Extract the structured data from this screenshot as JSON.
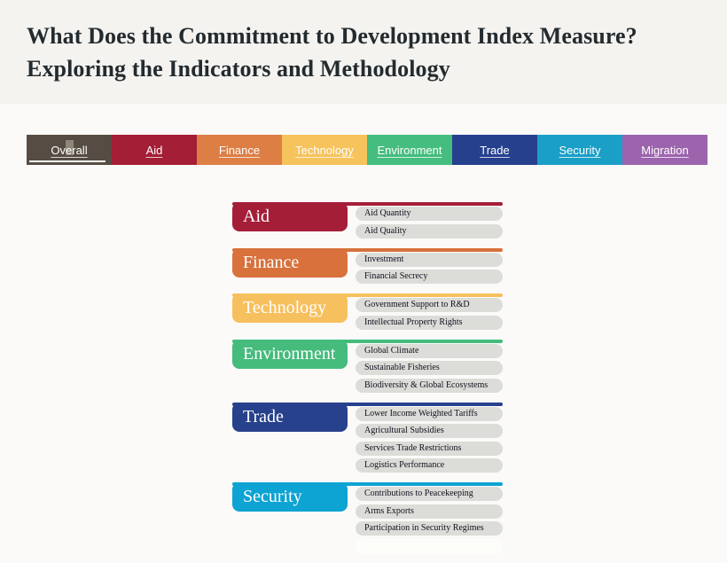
{
  "header": {
    "title_line1": "What Does the Commitment to Development Index Measure?",
    "title_line2": "Exploring the Indicators and Methodology"
  },
  "colors": {
    "header_background": "#f4f3f0",
    "page_background": "#fbfaf8",
    "title_text": "#232b2f",
    "pill_background": "#dcdcd8",
    "pill_text": "#10101f",
    "active_tab_underline": "#ffffff"
  },
  "tabs": {
    "items": [
      {
        "label": "Overall",
        "color": "#564c43",
        "active": true
      },
      {
        "label": "Aid",
        "color": "#a41e35",
        "active": false
      },
      {
        "label": "Finance",
        "color": "#dd7e45",
        "active": false
      },
      {
        "label": "Technology",
        "color": "#f6c35c",
        "active": false
      },
      {
        "label": "Environment",
        "color": "#45bd7e",
        "active": false
      },
      {
        "label": "Trade",
        "color": "#26408e",
        "active": false
      },
      {
        "label": "Security",
        "color": "#1a9fc6",
        "active": false
      },
      {
        "label": "Migration",
        "color": "#9c64ad",
        "active": false
      }
    ]
  },
  "diagram": {
    "groups": [
      {
        "name": "Aid",
        "color": "#a41e38",
        "indicators": [
          "Aid Quantity",
          "Aid Quality"
        ],
        "ghost_pill": false
      },
      {
        "name": "Finance",
        "color": "#d8713c",
        "indicators": [
          "Investment",
          "Financial Secrecy"
        ],
        "ghost_pill": false
      },
      {
        "name": "Technology",
        "color": "#f7c05e",
        "indicators": [
          "Government Support to R&D",
          "Intellectual Property Rights"
        ],
        "ghost_pill": false
      },
      {
        "name": "Environment",
        "color": "#45bb7c",
        "indicators": [
          "Global Climate",
          "Sustainable Fisheries",
          "Biodiversity & Global Ecosystems"
        ],
        "ghost_pill": false
      },
      {
        "name": "Trade",
        "color": "#27418c",
        "indicators": [
          "Lower Income Weighted Tariffs",
          "Agricultural Subsidies",
          "Services Trade Restrictions",
          "Logistics Performance"
        ],
        "ghost_pill": false
      },
      {
        "name": "Security",
        "color": "#0da3d2",
        "indicators": [
          "Contributions to Peacekeeping",
          "Arms Exports",
          "Participation in Security Regimes"
        ],
        "ghost_pill": true
      }
    ]
  }
}
